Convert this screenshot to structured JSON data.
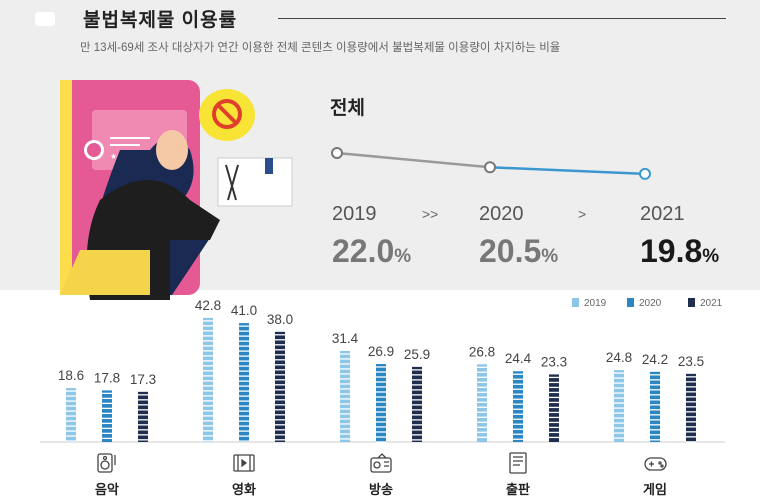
{
  "header": {
    "title": "불법복제물 이용률",
    "subtitle": "만 13세-69세 조사 대상자가 연간 이용한 전체 콘텐츠 이용량에서 불법복제물 이용량이 차지하는 비율"
  },
  "total": {
    "label": "전체",
    "separators": [
      ">>",
      ">"
    ],
    "years": [
      "2019",
      "2020",
      "2021"
    ],
    "values": [
      "22.0",
      "20.5",
      "19.8"
    ],
    "unit": "%"
  },
  "colors": {
    "2019": "#8ec6e8",
    "2020": "#2b87c4",
    "2021": "#1f2d4e",
    "line": "#9a9a9a",
    "line_end": "#3d97cf"
  },
  "icons": [
    "music-note-icon",
    "film-icon",
    "broadcast-icon",
    "book-icon",
    "game-controller-icon"
  ],
  "chart_data": [
    {
      "type": "line",
      "title": "전체",
      "x": [
        "2019",
        "2020",
        "2021"
      ],
      "series": [
        {
          "values": [
            22.0,
            20.5,
            19.8
          ]
        }
      ],
      "unit": "%"
    },
    {
      "type": "bar",
      "categories": [
        "음악",
        "영화",
        "방송",
        "출판",
        "게임"
      ],
      "series": [
        {
          "name": "2019",
          "values": [
            18.6,
            42.8,
            31.4,
            26.8,
            24.8
          ]
        },
        {
          "name": "2020",
          "values": [
            17.8,
            41.0,
            26.9,
            24.4,
            24.2
          ]
        },
        {
          "name": "2021",
          "values": [
            17.3,
            38.0,
            25.9,
            23.3,
            23.5
          ]
        }
      ],
      "legend": "top-right",
      "grid": false
    }
  ]
}
